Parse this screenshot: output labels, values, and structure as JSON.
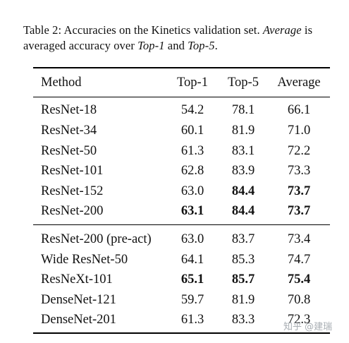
{
  "caption": {
    "label": "Table 2:",
    "text_a": " Accuracies on the Kinetics validation set. ",
    "em_a": "Average",
    "text_b": " is averaged accuracy over ",
    "em_b": "Top-1",
    "text_c": " and ",
    "em_c": "Top-5",
    "text_d": "."
  },
  "table": {
    "headers": [
      "Method",
      "Top-1",
      "Top-5",
      "Average"
    ],
    "group1": [
      {
        "method": "ResNet-18",
        "top1": "54.2",
        "top5": "78.1",
        "avg": "66.1",
        "bold": []
      },
      {
        "method": "ResNet-34",
        "top1": "60.1",
        "top5": "81.9",
        "avg": "71.0",
        "bold": []
      },
      {
        "method": "ResNet-50",
        "top1": "61.3",
        "top5": "83.1",
        "avg": "72.2",
        "bold": []
      },
      {
        "method": "ResNet-101",
        "top1": "62.8",
        "top5": "83.9",
        "avg": "73.3",
        "bold": []
      },
      {
        "method": "ResNet-152",
        "top1": "63.0",
        "top5": "84.4",
        "avg": "73.7",
        "bold": [
          "top5",
          "avg"
        ]
      },
      {
        "method": "ResNet-200",
        "top1": "63.1",
        "top5": "84.4",
        "avg": "73.7",
        "bold": [
          "top1",
          "top5",
          "avg"
        ]
      }
    ],
    "group2": [
      {
        "method": "ResNet-200 (pre-act)",
        "top1": "63.0",
        "top5": "83.7",
        "avg": "73.4",
        "bold": []
      },
      {
        "method": "Wide ResNet-50",
        "top1": "64.1",
        "top5": "85.3",
        "avg": "74.7",
        "bold": []
      },
      {
        "method": "ResNeXt-101",
        "top1": "65.1",
        "top5": "85.7",
        "avg": "75.4",
        "bold": [
          "top1",
          "top5",
          "avg"
        ]
      },
      {
        "method": "DenseNet-121",
        "top1": "59.7",
        "top5": "81.9",
        "avg": "70.8",
        "bold": []
      },
      {
        "method": "DenseNet-201",
        "top1": "61.3",
        "top5": "83.3",
        "avg": "72.3",
        "bold": []
      }
    ]
  },
  "watermark": "知乎 @建瑞"
}
